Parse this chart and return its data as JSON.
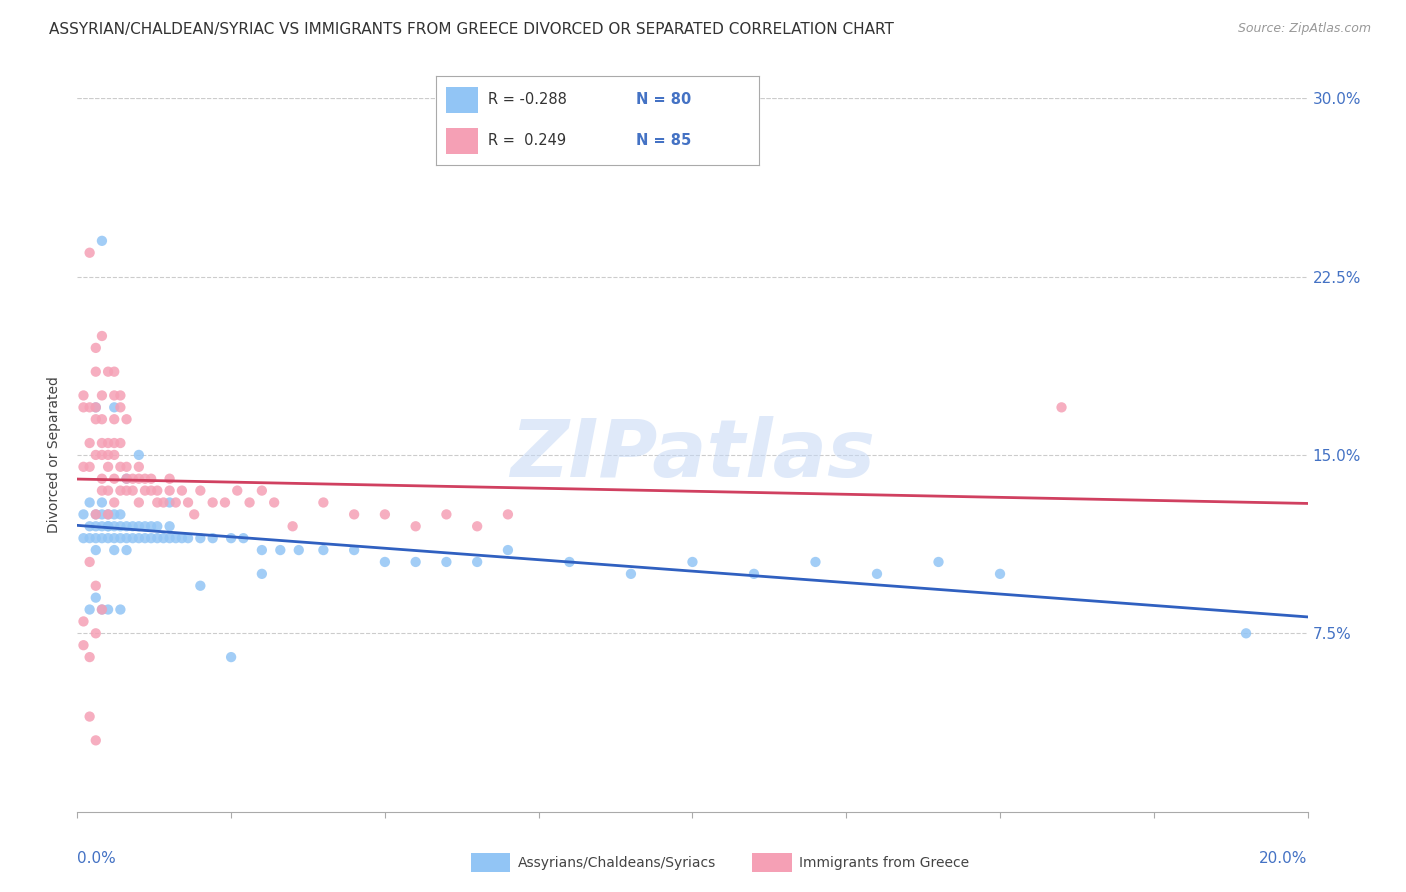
{
  "title": "ASSYRIAN/CHALDEAN/SYRIAC VS IMMIGRANTS FROM GREECE DIVORCED OR SEPARATED CORRELATION CHART",
  "source": "Source: ZipAtlas.com",
  "ylabel": "Divorced or Separated",
  "xmin": 0.0,
  "xmax": 0.2,
  "ymin": 0.0,
  "ymax": 0.3,
  "yticks": [
    0.075,
    0.15,
    0.225,
    0.3
  ],
  "ytick_labels": [
    "7.5%",
    "15.0%",
    "22.5%",
    "30.0%"
  ],
  "blue_color": "#92c5f5",
  "blue_line_color": "#3060c0",
  "pink_color": "#f5a0b5",
  "pink_line_color": "#d04060",
  "axis_color": "#4472c4",
  "bg_color": "#ffffff",
  "grid_color": "#cccccc",
  "watermark": "ZIPatlas",
  "legend_R1": "R = -0.288",
  "legend_N1": "N = 80",
  "legend_R2": "R =  0.249",
  "legend_N2": "N = 85",
  "title_fontsize": 11,
  "blue_x": [
    0.001,
    0.001,
    0.002,
    0.002,
    0.002,
    0.003,
    0.003,
    0.003,
    0.003,
    0.004,
    0.004,
    0.004,
    0.004,
    0.005,
    0.005,
    0.005,
    0.005,
    0.006,
    0.006,
    0.006,
    0.006,
    0.007,
    0.007,
    0.007,
    0.008,
    0.008,
    0.008,
    0.009,
    0.009,
    0.01,
    0.01,
    0.011,
    0.011,
    0.012,
    0.012,
    0.013,
    0.013,
    0.014,
    0.015,
    0.015,
    0.016,
    0.017,
    0.018,
    0.02,
    0.022,
    0.025,
    0.027,
    0.03,
    0.033,
    0.036,
    0.04,
    0.045,
    0.05,
    0.055,
    0.06,
    0.065,
    0.07,
    0.08,
    0.09,
    0.1,
    0.11,
    0.12,
    0.13,
    0.14,
    0.15,
    0.004,
    0.003,
    0.006,
    0.008,
    0.01,
    0.015,
    0.02,
    0.025,
    0.03,
    0.19,
    0.004,
    0.003,
    0.002,
    0.005,
    0.007
  ],
  "blue_y": [
    0.115,
    0.125,
    0.13,
    0.12,
    0.115,
    0.125,
    0.115,
    0.12,
    0.11,
    0.12,
    0.125,
    0.115,
    0.13,
    0.12,
    0.115,
    0.125,
    0.12,
    0.115,
    0.12,
    0.125,
    0.11,
    0.12,
    0.115,
    0.125,
    0.115,
    0.12,
    0.11,
    0.12,
    0.115,
    0.12,
    0.115,
    0.115,
    0.12,
    0.115,
    0.12,
    0.115,
    0.12,
    0.115,
    0.12,
    0.115,
    0.115,
    0.115,
    0.115,
    0.115,
    0.115,
    0.115,
    0.115,
    0.11,
    0.11,
    0.11,
    0.11,
    0.11,
    0.105,
    0.105,
    0.105,
    0.105,
    0.11,
    0.105,
    0.1,
    0.105,
    0.1,
    0.105,
    0.1,
    0.105,
    0.1,
    0.24,
    0.17,
    0.17,
    0.14,
    0.15,
    0.13,
    0.095,
    0.065,
    0.1,
    0.075,
    0.085,
    0.09,
    0.085,
    0.085,
    0.085
  ],
  "pink_x": [
    0.001,
    0.001,
    0.001,
    0.002,
    0.002,
    0.002,
    0.003,
    0.003,
    0.003,
    0.003,
    0.004,
    0.004,
    0.004,
    0.004,
    0.005,
    0.005,
    0.005,
    0.005,
    0.006,
    0.006,
    0.006,
    0.006,
    0.007,
    0.007,
    0.007,
    0.008,
    0.008,
    0.008,
    0.009,
    0.009,
    0.01,
    0.01,
    0.01,
    0.011,
    0.011,
    0.012,
    0.012,
    0.013,
    0.013,
    0.014,
    0.015,
    0.015,
    0.016,
    0.017,
    0.018,
    0.019,
    0.02,
    0.022,
    0.024,
    0.026,
    0.028,
    0.03,
    0.032,
    0.035,
    0.04,
    0.045,
    0.05,
    0.055,
    0.06,
    0.065,
    0.07,
    0.002,
    0.003,
    0.004,
    0.005,
    0.006,
    0.007,
    0.003,
    0.004,
    0.005,
    0.002,
    0.003,
    0.004,
    0.16,
    0.001,
    0.001,
    0.002,
    0.002,
    0.003,
    0.003,
    0.004,
    0.006,
    0.006,
    0.007,
    0.008
  ],
  "pink_y": [
    0.175,
    0.145,
    0.17,
    0.155,
    0.17,
    0.145,
    0.15,
    0.17,
    0.125,
    0.165,
    0.14,
    0.15,
    0.135,
    0.155,
    0.15,
    0.135,
    0.145,
    0.155,
    0.14,
    0.13,
    0.15,
    0.155,
    0.145,
    0.135,
    0.155,
    0.14,
    0.135,
    0.145,
    0.14,
    0.135,
    0.13,
    0.14,
    0.145,
    0.135,
    0.14,
    0.135,
    0.14,
    0.13,
    0.135,
    0.13,
    0.135,
    0.14,
    0.13,
    0.135,
    0.13,
    0.125,
    0.135,
    0.13,
    0.13,
    0.135,
    0.13,
    0.135,
    0.13,
    0.12,
    0.13,
    0.125,
    0.125,
    0.12,
    0.125,
    0.12,
    0.125,
    0.235,
    0.195,
    0.2,
    0.185,
    0.185,
    0.175,
    0.185,
    0.175,
    0.125,
    0.105,
    0.095,
    0.085,
    0.17,
    0.08,
    0.07,
    0.065,
    0.04,
    0.03,
    0.075,
    0.165,
    0.165,
    0.175,
    0.17,
    0.165
  ]
}
